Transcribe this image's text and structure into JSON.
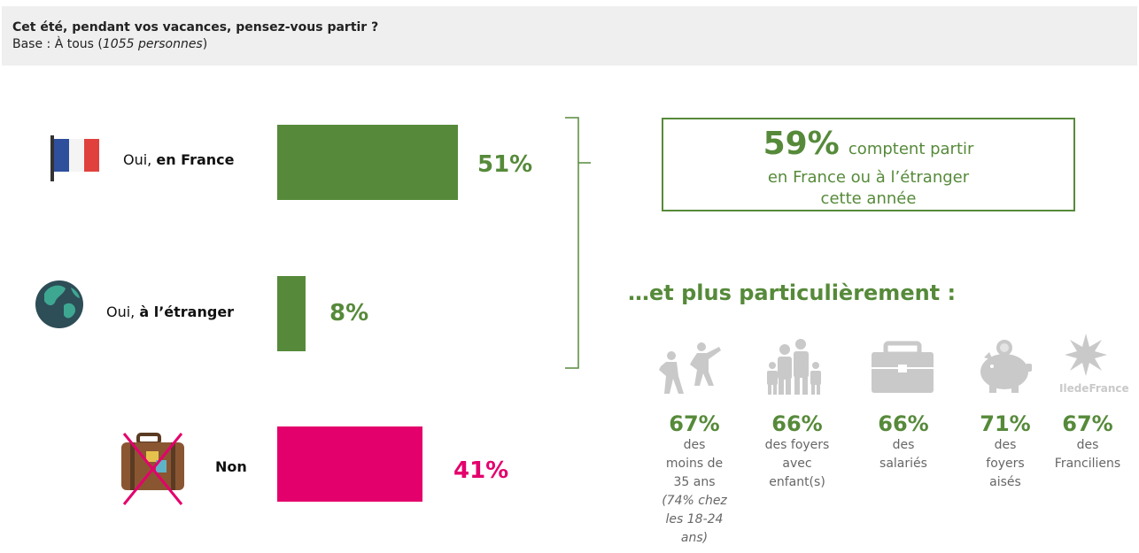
{
  "header": {
    "question": "Cet été, pendant vos vacances, pensez-vous partir ?",
    "base_prefix": "Base : À tous (",
    "base_count": "1055 personnes",
    "base_suffix": ")"
  },
  "rows": [
    {
      "label_prefix": "Oui, ",
      "label_bold": "en France",
      "pct": "51%"
    },
    {
      "label_prefix": "Oui, ",
      "label_bold": "à l’étranger",
      "pct": "8%"
    },
    {
      "label_prefix": "",
      "label_bold": "Non",
      "pct": "41%"
    }
  ],
  "colors": {
    "green": "#568a3a",
    "pink": "#e4006c",
    "icon_grey": "#c9c9c9"
  },
  "chart_data": {
    "type": "bar",
    "orientation": "horizontal",
    "categories": [
      "Oui, en France",
      "Oui, à l’étranger",
      "Non"
    ],
    "values": [
      51,
      8,
      41
    ],
    "unit": "%",
    "colors": [
      "#568a3a",
      "#568a3a",
      "#e4006c"
    ]
  },
  "summary": {
    "big": "59%",
    "text1": "comptent partir",
    "text2": "en France ou à l’étranger",
    "text3": "cette année"
  },
  "subhead": "…et plus particulièrement :",
  "stats": [
    {
      "icon": "people-dancing-icon",
      "value": "67%",
      "lines": [
        "des",
        "moins de",
        "35 ans"
      ],
      "note": [
        "(74% chez",
        "les 18-24",
        "ans)"
      ]
    },
    {
      "icon": "family-icon",
      "value": "66%",
      "lines": [
        "des foyers",
        "avec",
        "enfant(s)"
      ]
    },
    {
      "icon": "briefcase-icon",
      "value": "66%",
      "lines": [
        "des",
        "salariés"
      ]
    },
    {
      "icon": "piggy-bank-icon",
      "value": "71%",
      "lines": [
        "des",
        "foyers",
        "aisés"
      ]
    },
    {
      "icon": "ile-de-france-logo",
      "value": "67%",
      "lines": [
        "des",
        "Franciliens"
      ],
      "logo_text": "IledeFrance"
    }
  ]
}
